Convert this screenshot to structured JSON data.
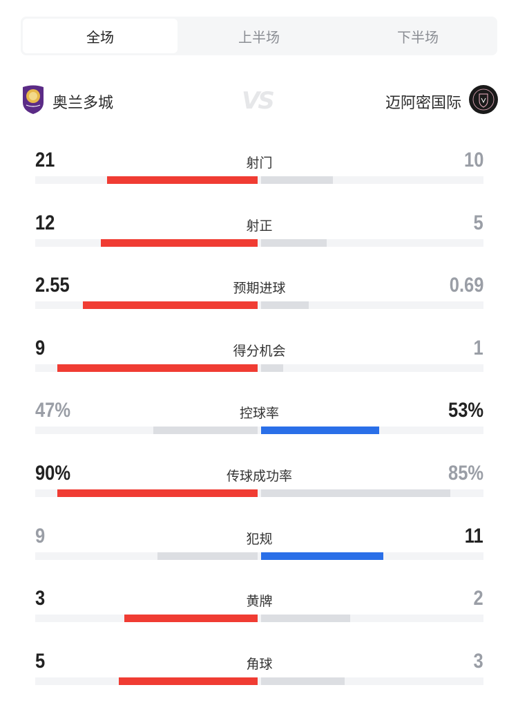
{
  "tabs": [
    {
      "label": "全场",
      "active": true
    },
    {
      "label": "上半场",
      "active": false
    },
    {
      "label": "下半场",
      "active": false
    }
  ],
  "match": {
    "home": {
      "name": "奥兰多城",
      "logo": "orlando-city-crest",
      "color": "#5b2b86"
    },
    "vs": "VS",
    "away": {
      "name": "迈阿密国际",
      "logo": "inter-miami-crest",
      "color": "#1a1a1a"
    }
  },
  "colors": {
    "home_win": "#f03c33",
    "away_win": "#2a6fe8",
    "lose": "#dcdee2",
    "track": "#f3f4f6"
  },
  "stats": [
    {
      "label": "射门",
      "home": "21",
      "away": "10"
    },
    {
      "label": "射正",
      "home": "12",
      "away": "5"
    },
    {
      "label": "预期进球",
      "home": "2.55",
      "away": "0.69"
    },
    {
      "label": "得分机会",
      "home": "9",
      "away": "1"
    },
    {
      "label": "控球率",
      "home": "47%",
      "away": "53%"
    },
    {
      "label": "传球成功率",
      "home": "90%",
      "away": "85%"
    },
    {
      "label": "犯规",
      "home": "9",
      "away": "11"
    },
    {
      "label": "黄牌",
      "home": "3",
      "away": "2"
    },
    {
      "label": "角球",
      "home": "5",
      "away": "3"
    }
  ]
}
